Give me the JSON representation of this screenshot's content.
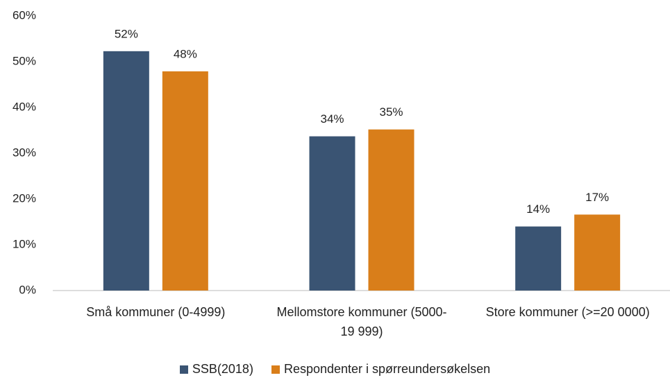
{
  "chart_data": {
    "type": "bar",
    "categories": [
      "Små kommuner (0-4999)",
      "Mellomstore kommuner (5000-19 999)",
      "Store kommuner (>=20 0000)"
    ],
    "series": [
      {
        "name": "SSB(2018)",
        "color": "#3a5473",
        "values": [
          52.3,
          33.7,
          14.0
        ],
        "value_labels": [
          "52%",
          "34%",
          "14%"
        ]
      },
      {
        "name": "Respondenter i spørreundersøkelsen",
        "color": "#d97e1a",
        "values": [
          47.9,
          35.2,
          16.6
        ],
        "value_labels": [
          "48%",
          "35%",
          "17%"
        ]
      }
    ],
    "ylim": [
      0,
      60
    ],
    "yticks": [
      {
        "value": 0,
        "label": "0%"
      },
      {
        "value": 10,
        "label": "10%"
      },
      {
        "value": 20,
        "label": "20%"
      },
      {
        "value": 30,
        "label": "30%"
      },
      {
        "value": 40,
        "label": "40%"
      },
      {
        "value": 50,
        "label": "50%"
      },
      {
        "value": 60,
        "label": "60%"
      }
    ],
    "grid": false,
    "legend": "bottom"
  }
}
